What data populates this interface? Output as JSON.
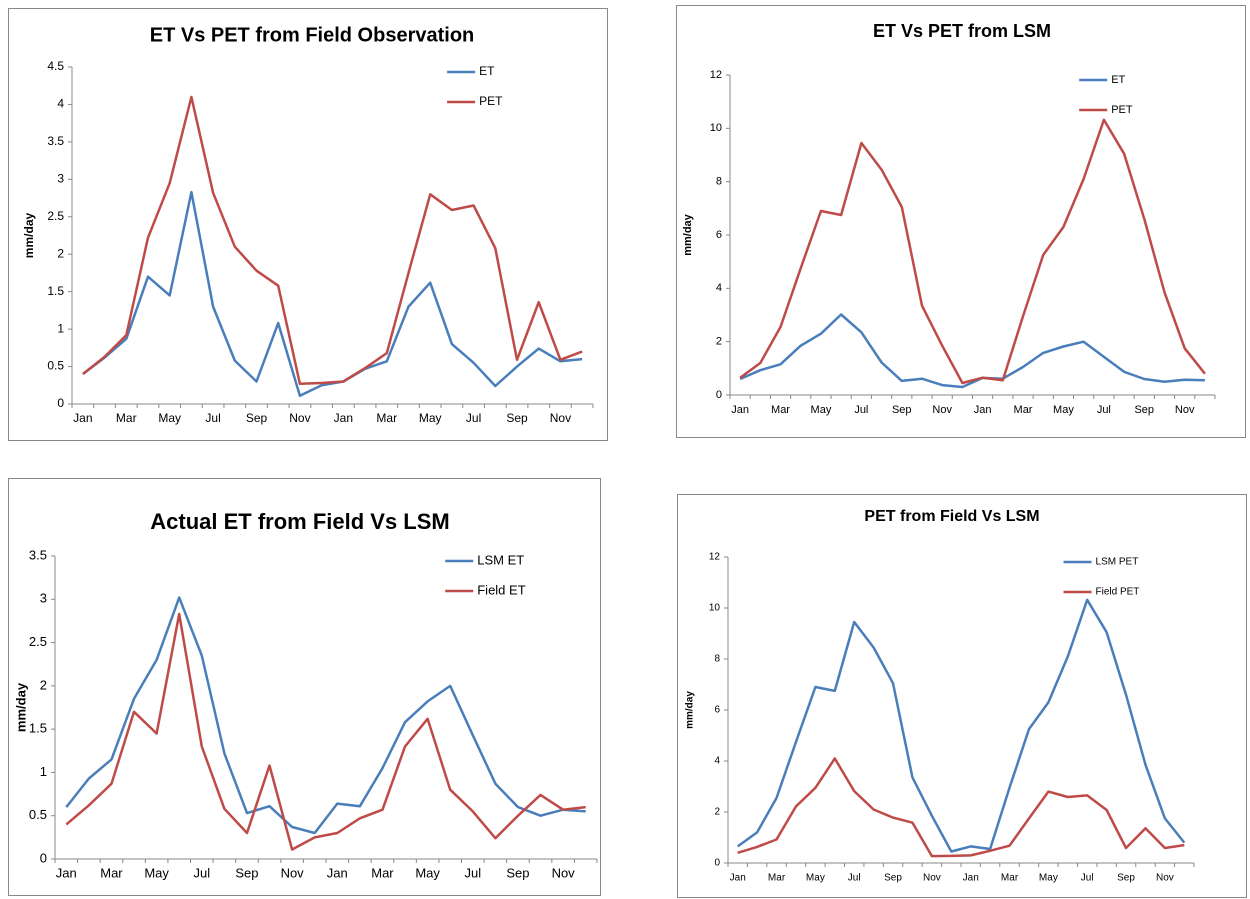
{
  "chart_data": [
    {
      "type": "line",
      "title": "ET Vs PET from Field Observation",
      "y_label": "mm/day",
      "categories": [
        "Jan",
        null,
        "Mar",
        null,
        "May",
        null,
        "Jul",
        null,
        "Sep",
        null,
        "Nov",
        null,
        "Jan",
        null,
        "Mar",
        null,
        "May",
        null,
        "Jul",
        null,
        "Sep",
        null,
        "Nov",
        null
      ],
      "series": [
        {
          "name": "ET",
          "color": "#4a7ebb",
          "values": [
            0.4,
            0.62,
            0.87,
            1.7,
            1.45,
            2.83,
            1.3,
            0.58,
            0.3,
            1.08,
            0.11,
            0.25,
            0.3,
            0.47,
            0.57,
            1.3,
            1.62,
            0.8,
            0.55,
            0.24,
            0.5,
            0.74,
            0.57,
            0.6
          ]
        },
        {
          "name": "PET",
          "color": "#be4b48",
          "values": [
            0.4,
            0.63,
            0.92,
            2.22,
            2.95,
            4.1,
            2.82,
            2.1,
            1.78,
            1.58,
            0.27,
            0.28,
            0.3,
            0.48,
            0.68,
            1.75,
            2.8,
            2.59,
            2.65,
            2.08,
            0.59,
            1.36,
            0.59,
            0.7
          ]
        }
      ],
      "ylim": [
        0,
        4.5
      ],
      "yticks": [
        0,
        0.5,
        1,
        1.5,
        2,
        2.5,
        3,
        3.5,
        4,
        4.5
      ],
      "grid": false,
      "legend": "upper right"
    },
    {
      "type": "line",
      "title": "ET Vs PET from LSM",
      "y_label": "mm/day",
      "categories": [
        "Jan",
        null,
        "Mar",
        null,
        "May",
        null,
        "Jul",
        null,
        "Sep",
        null,
        "Nov",
        null,
        "Jan",
        null,
        "Mar",
        null,
        "May",
        null,
        "Jul",
        null,
        "Sep",
        null,
        "Nov",
        null
      ],
      "series": [
        {
          "name": "ET",
          "color": "#4a7ebb",
          "values": [
            0.6,
            0.93,
            1.15,
            1.85,
            2.3,
            3.02,
            2.35,
            1.22,
            0.53,
            0.61,
            0.37,
            0.3,
            0.64,
            0.61,
            1.05,
            1.58,
            1.82,
            2.0,
            1.43,
            0.87,
            0.6,
            0.5,
            0.57,
            0.55
          ]
        },
        {
          "name": "PET",
          "color": "#be4b48",
          "values": [
            0.65,
            1.2,
            2.55,
            4.75,
            6.9,
            6.75,
            9.45,
            8.45,
            7.05,
            3.35,
            1.85,
            0.45,
            0.65,
            0.55,
            2.95,
            5.25,
            6.3,
            8.1,
            10.32,
            9.05,
            6.6,
            3.85,
            1.75,
            0.8
          ]
        }
      ],
      "ylim": [
        0,
        12
      ],
      "yticks": [
        0,
        2,
        4,
        6,
        8,
        10,
        12
      ],
      "grid": false,
      "legend": "upper right"
    },
    {
      "type": "line",
      "title": "Actual ET from Field Vs LSM",
      "y_label": "mm/day",
      "categories": [
        "Jan",
        null,
        "Mar",
        null,
        "May",
        null,
        "Jul",
        null,
        "Sep",
        null,
        "Nov",
        null,
        "Jan",
        null,
        "Mar",
        null,
        "May",
        null,
        "Jul",
        null,
        "Sep",
        null,
        "Nov",
        null
      ],
      "series": [
        {
          "name": "LSM ET",
          "color": "#4a7ebb",
          "values": [
            0.6,
            0.93,
            1.15,
            1.85,
            2.3,
            3.02,
            2.35,
            1.22,
            0.53,
            0.61,
            0.37,
            0.3,
            0.64,
            0.61,
            1.05,
            1.58,
            1.82,
            2.0,
            1.43,
            0.87,
            0.6,
            0.5,
            0.57,
            0.55
          ]
        },
        {
          "name": "Field ET",
          "color": "#be4b48",
          "values": [
            0.4,
            0.62,
            0.87,
            1.7,
            1.45,
            2.83,
            1.3,
            0.58,
            0.3,
            1.08,
            0.11,
            0.25,
            0.3,
            0.47,
            0.57,
            1.3,
            1.62,
            0.8,
            0.55,
            0.24,
            0.5,
            0.74,
            0.57,
            0.6
          ]
        }
      ],
      "ylim": [
        0,
        3.5
      ],
      "yticks": [
        0,
        0.5,
        1,
        1.5,
        2,
        2.5,
        3,
        3.5
      ],
      "grid": false,
      "legend": "upper right"
    },
    {
      "type": "line",
      "title": "PET from Field Vs LSM",
      "y_label": "mm/day",
      "categories": [
        "Jan",
        null,
        "Mar",
        null,
        "May",
        null,
        "Jul",
        null,
        "Sep",
        null,
        "Nov",
        null,
        "Jan",
        null,
        "Mar",
        null,
        "May",
        null,
        "Jul",
        null,
        "Sep",
        null,
        "Nov",
        null
      ],
      "series": [
        {
          "name": "LSM PET",
          "color": "#4a7ebb",
          "values": [
            0.65,
            1.2,
            2.55,
            4.75,
            6.9,
            6.75,
            9.45,
            8.45,
            7.05,
            3.35,
            1.85,
            0.45,
            0.65,
            0.55,
            2.95,
            5.25,
            6.3,
            8.1,
            10.32,
            9.05,
            6.6,
            3.85,
            1.75,
            0.8
          ]
        },
        {
          "name": "Field PET",
          "color": "#be4b48",
          "values": [
            0.4,
            0.63,
            0.92,
            2.22,
            2.95,
            4.1,
            2.82,
            2.1,
            1.78,
            1.58,
            0.27,
            0.28,
            0.3,
            0.48,
            0.68,
            1.75,
            2.8,
            2.59,
            2.65,
            2.08,
            0.59,
            1.36,
            0.59,
            0.7
          ]
        }
      ],
      "ylim": [
        0,
        12
      ],
      "yticks": [
        0,
        2,
        4,
        6,
        8,
        10,
        12
      ],
      "grid": false,
      "legend": "upper right"
    }
  ]
}
